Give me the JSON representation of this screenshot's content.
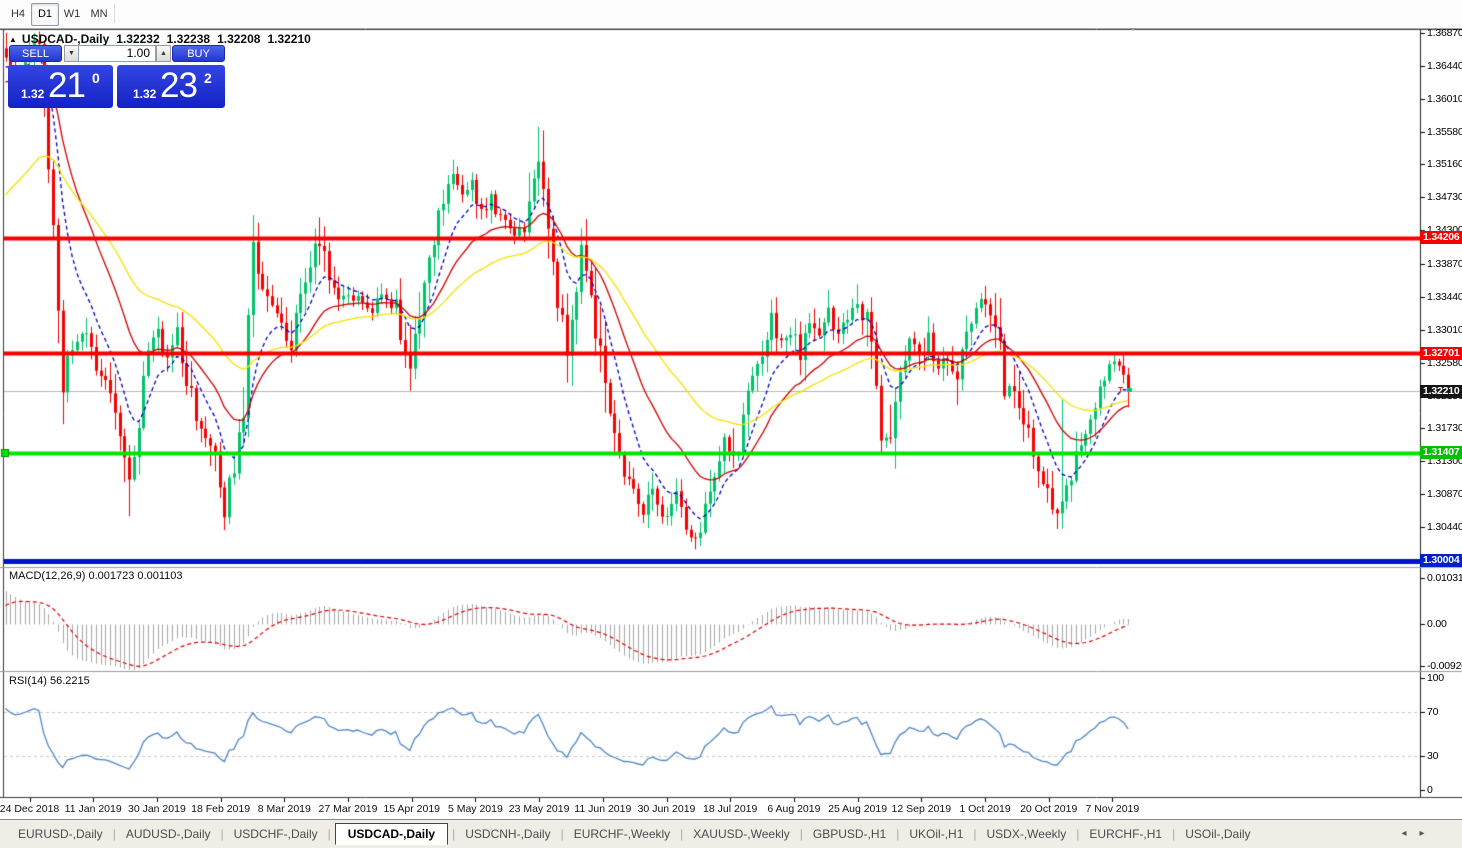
{
  "toolbar": {
    "timeframes": [
      {
        "label": "H4",
        "active": false
      },
      {
        "label": "D1",
        "active": true
      },
      {
        "label": "W1",
        "active": false
      },
      {
        "label": "MN",
        "active": false
      }
    ]
  },
  "chart": {
    "collapse_marker": "▲",
    "title": "USDCAD-,Daily",
    "ohlc": [
      "1.32232",
      "1.32238",
      "1.32208",
      "1.32210"
    ]
  },
  "trade_panel": {
    "sell_label": "SELL",
    "buy_label": "BUY",
    "volume": "1.00",
    "spinner_down": "▼",
    "spinner_up": "▲",
    "sell_price": {
      "prefix": "1.32",
      "big": "21",
      "sup": "0"
    },
    "buy_price": {
      "prefix": "1.32",
      "big": "23",
      "sup": "2"
    }
  },
  "price_axis": {
    "ticks": [
      "1.36870",
      "1.36440",
      "1.36010",
      "1.35580",
      "1.35160",
      "1.34730",
      "1.34300",
      "1.33870",
      "1.33440",
      "1.33010",
      "1.32580",
      "1.32150",
      "1.31730",
      "1.31300",
      "1.30870",
      "1.30440"
    ]
  },
  "macd_panel": {
    "name": "MACD(12,26,9)",
    "values": "0.001723 0.001103",
    "axis": [
      "0.010311",
      "0.00",
      "-0.009203"
    ]
  },
  "rsi_panel": {
    "name": "RSI(14)",
    "values": "56.2215",
    "axis": [
      "100",
      "70",
      "30",
      "0"
    ]
  },
  "x_axis": {
    "dates": [
      "24 Dec 2018",
      "11 Jan 2019",
      "30 Jan 2019",
      "18 Feb 2019",
      "8 Mar 2019",
      "27 Mar 2019",
      "15 Apr 2019",
      "5 May 2019",
      "23 May 2019",
      "11 Jun 2019",
      "30 Jun 2019",
      "18 Jul 2019",
      "6 Aug 2019",
      "25 Aug 2019",
      "12 Sep 2019",
      "1 Oct 2019",
      "20 Oct 2019",
      "7 Nov 2019"
    ]
  },
  "tabs": {
    "items": [
      {
        "label": "EURUSD-,Daily",
        "active": false
      },
      {
        "label": "AUDUSD-,Daily",
        "active": false
      },
      {
        "label": "USDCHF-,Daily",
        "active": false
      },
      {
        "label": "USDCAD-,Daily",
        "active": true
      },
      {
        "label": "USDCNH-,Daily",
        "active": false
      },
      {
        "label": "EURCHF-,Weekly",
        "active": false
      },
      {
        "label": "XAUUSD-,Weekly",
        "active": false
      },
      {
        "label": "GBPUSD-,H1",
        "active": false
      },
      {
        "label": "UKOil-,H1",
        "active": false
      },
      {
        "label": "USDX-,Weekly",
        "active": false
      },
      {
        "label": "EURCHF-,H1",
        "active": false
      },
      {
        "label": "USOil-,Daily",
        "active": false
      }
    ],
    "scroll_left": "◂",
    "scroll_right": "▸"
  },
  "chart_data": {
    "type": "candlestick",
    "title": "USDCAD-,Daily",
    "symbol": "USDCAD-",
    "timeframe": "Daily",
    "ohlc_display": [
      1.32232,
      1.32238,
      1.32208,
      1.3221
    ],
    "ylim": [
      1.29934,
      1.36909
    ],
    "num_candles": 237,
    "candle_up_color": "#00C46B",
    "candle_down_color": "#F60000",
    "close_path_anchors": [
      [
        0,
        1.3655
      ],
      [
        2,
        1.3628
      ],
      [
        4,
        1.3655
      ],
      [
        6,
        1.3668
      ],
      [
        7,
        1.365
      ],
      [
        8,
        1.36
      ],
      [
        9,
        1.351
      ],
      [
        11,
        1.333
      ],
      [
        12,
        1.3225
      ],
      [
        14,
        1.328
      ],
      [
        17,
        1.3295
      ],
      [
        19,
        1.3255
      ],
      [
        22,
        1.3235
      ],
      [
        24,
        1.315
      ],
      [
        26,
        1.309
      ],
      [
        28,
        1.316
      ],
      [
        30,
        1.328
      ],
      [
        32,
        1.33
      ],
      [
        34,
        1.3262
      ],
      [
        36,
        1.329
      ],
      [
        38,
        1.324
      ],
      [
        40,
        1.318
      ],
      [
        43,
        1.3155
      ],
      [
        45,
        1.3108
      ],
      [
        46,
        1.307
      ],
      [
        48,
        1.3128
      ],
      [
        50,
        1.32
      ],
      [
        51,
        1.333
      ],
      [
        52,
        1.3412
      ],
      [
        54,
        1.336
      ],
      [
        56,
        1.3325
      ],
      [
        58,
        1.3305
      ],
      [
        60,
        1.328
      ],
      [
        62,
        1.334
      ],
      [
        64,
        1.339
      ],
      [
        66,
        1.3418
      ],
      [
        68,
        1.337
      ],
      [
        70,
        1.3335
      ],
      [
        72,
        1.3348
      ],
      [
        74,
        1.334
      ],
      [
        77,
        1.333
      ],
      [
        79,
        1.3342
      ],
      [
        82,
        1.3325
      ],
      [
        84,
        1.327
      ],
      [
        85,
        1.3248
      ],
      [
        86,
        1.3282
      ],
      [
        88,
        1.3352
      ],
      [
        90,
        1.342
      ],
      [
        92,
        1.347
      ],
      [
        94,
        1.3496
      ],
      [
        96,
        1.3478
      ],
      [
        98,
        1.3488
      ],
      [
        100,
        1.3455
      ],
      [
        102,
        1.3472
      ],
      [
        104,
        1.3448
      ],
      [
        106,
        1.343
      ],
      [
        108,
        1.3425
      ],
      [
        110,
        1.3445
      ],
      [
        111,
        1.3505
      ],
      [
        112,
        1.3512
      ],
      [
        113,
        1.349
      ],
      [
        114,
        1.344
      ],
      [
        115,
        1.3375
      ],
      [
        116,
        1.334
      ],
      [
        118,
        1.3282
      ],
      [
        120,
        1.3362
      ],
      [
        121,
        1.3398
      ],
      [
        123,
        1.334
      ],
      [
        125,
        1.327
      ],
      [
        127,
        1.318
      ],
      [
        129,
        1.313
      ],
      [
        131,
        1.3102
      ],
      [
        134,
        1.3066
      ],
      [
        136,
        1.3088
      ],
      [
        138,
        1.3052
      ],
      [
        141,
        1.3078
      ],
      [
        143,
        1.3038
      ],
      [
        145,
        1.303
      ],
      [
        147,
        1.3062
      ],
      [
        149,
        1.3112
      ],
      [
        151,
        1.3152
      ],
      [
        153,
        1.3128
      ],
      [
        155,
        1.3182
      ],
      [
        157,
        1.3232
      ],
      [
        159,
        1.3272
      ],
      [
        161,
        1.3312
      ],
      [
        163,
        1.3282
      ],
      [
        165,
        1.3302
      ],
      [
        167,
        1.3272
      ],
      [
        169,
        1.3312
      ],
      [
        171,
        1.3288
      ],
      [
        173,
        1.3322
      ],
      [
        175,
        1.3292
      ],
      [
        177,
        1.3312
      ],
      [
        179,
        1.3332
      ],
      [
        181,
        1.3312
      ],
      [
        183,
        1.3232
      ],
      [
        184,
        1.3158
      ],
      [
        186,
        1.3168
      ],
      [
        188,
        1.3252
      ],
      [
        190,
        1.3292
      ],
      [
        192,
        1.3262
      ],
      [
        194,
        1.3292
      ],
      [
        196,
        1.3252
      ],
      [
        198,
        1.3272
      ],
      [
        200,
        1.3235
      ],
      [
        202,
        1.3292
      ],
      [
        204,
        1.3322
      ],
      [
        206,
        1.3342
      ],
      [
        207,
        1.333
      ],
      [
        209,
        1.327
      ],
      [
        210,
        1.322
      ],
      [
        212,
        1.3235
      ],
      [
        214,
        1.3185
      ],
      [
        216,
        1.314
      ],
      [
        218,
        1.311
      ],
      [
        220,
        1.3078
      ],
      [
        221,
        1.3058
      ],
      [
        222,
        1.3072
      ],
      [
        223,
        1.3088
      ],
      [
        224,
        1.3112
      ],
      [
        226,
        1.3152
      ],
      [
        228,
        1.3178
      ],
      [
        230,
        1.3232
      ],
      [
        232,
        1.3256
      ],
      [
        233,
        1.3264
      ],
      [
        234,
        1.3248
      ],
      [
        235,
        1.3238
      ],
      [
        236,
        1.3221
      ]
    ],
    "wick_overrides": [
      {
        "i": 6,
        "high": 1.3687
      },
      {
        "i": 12,
        "low": 1.3178
      },
      {
        "i": 26,
        "low": 1.3058
      },
      {
        "i": 46,
        "low": 1.304
      },
      {
        "i": 52,
        "high": 1.345
      },
      {
        "i": 66,
        "high": 1.3447
      },
      {
        "i": 94,
        "high": 1.3522
      },
      {
        "i": 112,
        "high": 1.3565
      },
      {
        "i": 118,
        "low": 1.3232
      },
      {
        "i": 145,
        "low": 1.3015
      },
      {
        "i": 161,
        "high": 1.334
      },
      {
        "i": 179,
        "high": 1.336
      },
      {
        "i": 184,
        "low": 1.314
      },
      {
        "i": 206,
        "high": 1.3358
      },
      {
        "i": 222,
        "high": 1.321,
        "low": 1.3042
      },
      {
        "i": 233,
        "high": 1.327
      }
    ],
    "moving_averages": [
      {
        "name": "ma-fast",
        "period": 9,
        "color": "#0000C8",
        "dashed": true,
        "seed": 1.364
      },
      {
        "name": "ma-medium",
        "period": 21,
        "color": "#CE0000",
        "dashed": false,
        "seed": 1.362
      },
      {
        "name": "ma-slow",
        "period": 45,
        "color": "#F5E300",
        "dashed": false,
        "seed": 1.3468
      }
    ],
    "hlines": [
      {
        "price": 1.34206,
        "label": "1.34206",
        "color": "#F60000",
        "tag_bg": "#F60000",
        "width": 4,
        "marker": false
      },
      {
        "price": 1.32701,
        "label": "1.32701",
        "color": "#F60000",
        "tag_bg": "#F60000",
        "width": 4,
        "marker": false
      },
      {
        "price": 1.31407,
        "label": "1.31407",
        "color": "#00E400",
        "tag_bg": "#00C000",
        "width": 4,
        "marker": true
      },
      {
        "price": 1.30004,
        "label": "1.30004",
        "color": "#0013C8",
        "tag_bg": "#0020C8",
        "width": 5,
        "marker": false
      }
    ],
    "current_price": {
      "price": 1.3221,
      "label": "1.32210",
      "line_color": "#b6b6b6",
      "tag_bg": "#151515"
    },
    "macd": {
      "params": [
        12,
        26,
        9
      ],
      "main_value": 0.001723,
      "signal_value": 0.001103,
      "range": [
        -0.009203,
        0.010311
      ],
      "hist_color": "#a8a8a8",
      "signal_color": "#E40000",
      "ema26_seed_offset": -0.008,
      "signal_seed_offset": -0.004
    },
    "rsi": {
      "period": 14,
      "value": 56.2215,
      "levels": [
        70,
        30
      ],
      "range": [
        0,
        100
      ],
      "line_color": "#4f86c6",
      "level_color": "#c9c9c9",
      "seed_gain": 0.0016,
      "seed_loss": 0.0006
    }
  }
}
